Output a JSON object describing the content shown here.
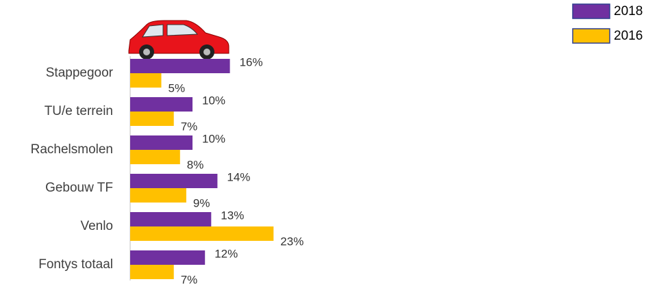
{
  "chart_data": {
    "type": "bar",
    "orientation": "horizontal",
    "categories": [
      "Stappegoor",
      "TU/e terrein",
      "Rachelsmolen",
      "Gebouw TF",
      "Venlo",
      "Fontys totaal"
    ],
    "series": [
      {
        "name": "2018",
        "color": "#7030a0",
        "values": [
          16,
          10,
          10,
          14,
          13,
          12
        ],
        "value_labels": [
          "16%",
          "10%",
          "10%",
          "14%",
          "13%",
          "12%"
        ]
      },
      {
        "name": "2016",
        "color": "#ffc000",
        "values": [
          5,
          7,
          8,
          9,
          23,
          7
        ],
        "value_labels": [
          "5%",
          "7%",
          "8%",
          "9%",
          "23%",
          "7%"
        ]
      }
    ],
    "legend": "top-right"
  }
}
